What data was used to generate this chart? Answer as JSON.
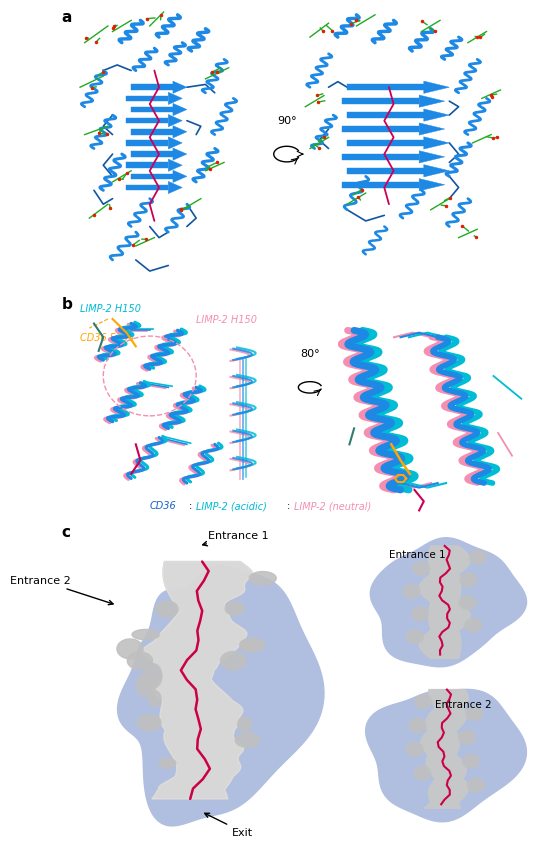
{
  "panel_a_label": "a",
  "panel_b_label": "b",
  "panel_c_label": "c",
  "rotation_90": "90°",
  "rotation_80": "80°",
  "label_limp2_h150_cyan": "LIMP-2 H150",
  "label_cd36_f153": "CD36 F153",
  "label_limp2_h150_pink": "LIMP-2 H150",
  "label_entrance1_left": "Entrance 1",
  "label_entrance2_left": "Entrance 2",
  "label_exit": "Exit",
  "label_entrance1_right": "Entrance 1",
  "label_entrance2_right": "Entrance 2",
  "color_limp2_cyan": "#00bcd4",
  "color_cd36_blue": "#1565C0",
  "color_limp2_pink": "#f48fb1",
  "color_cd36_label": "#1565C0",
  "color_limp2_acidic": "#00bcd4",
  "color_limp2_neutral": "#f48fb1",
  "color_orange": "#FFA500",
  "color_protein_blue": "#1E88E5",
  "color_protein_dark": "#1255a0",
  "color_tunnel_bg": "#b0bfdf",
  "color_tunnel_surface": "#d8d8d8",
  "color_fatty_acid": "#cc0044",
  "color_green_ligand": "#22aa22",
  "color_red_oxygen": "#dd2200",
  "background_color": "#ffffff",
  "fig_width": 4.74,
  "fig_height": 8.44
}
